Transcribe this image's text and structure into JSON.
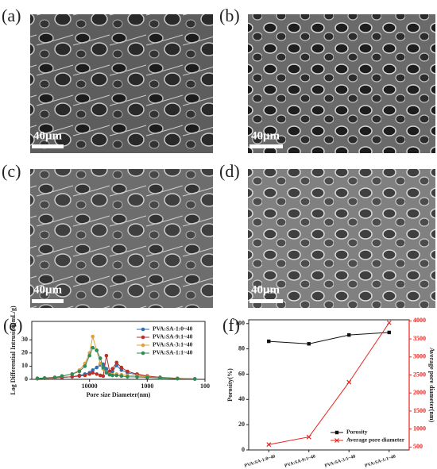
{
  "images": [
    {
      "label": "(a)",
      "scale_bar": "40μm"
    },
    {
      "label": "(b)",
      "scale_bar": "40μm"
    },
    {
      "label": "(c)",
      "scale_bar": "40μm"
    },
    {
      "label": "(d)",
      "scale_bar": "40μm"
    }
  ],
  "chart_data": [
    {
      "type": "line",
      "panel_label": "(e)",
      "x_label": "Pore size Diameter(nm)",
      "y_label": "Log Differential Intrusion(mL/g)",
      "x": [
        80000,
        60000,
        40000,
        30000,
        20000,
        15000,
        12000,
        10000,
        8800,
        7500,
        6500,
        5800,
        5100,
        4500,
        4000,
        3400,
        2800,
        2200,
        1500,
        1000,
        600,
        300,
        150
      ],
      "xlim": [
        100000,
        100
      ],
      "xscale": "log",
      "xticks": [
        10000,
        1000,
        100
      ],
      "ylim": [
        0,
        44
      ],
      "yticks": [
        0,
        10,
        20,
        30
      ],
      "legend": "upper right",
      "series": [
        {
          "name": "PVA:SA-1:0~40",
          "color": "#2f6eb5",
          "values": [
            0.5,
            0.8,
            1,
            1.5,
            2,
            3,
            4,
            5,
            7,
            9,
            11,
            11.5,
            8,
            4,
            6,
            10.5,
            7,
            5,
            3.5,
            2.5,
            1.5,
            0.7,
            0.3
          ]
        },
        {
          "name": "PVA:SA-9:1~40",
          "color": "#b8322a",
          "values": [
            0.5,
            0.8,
            1,
            1.5,
            2,
            2.5,
            3,
            4,
            5,
            4,
            3,
            2.5,
            18,
            6,
            8,
            12.8,
            9,
            6,
            4,
            2.5,
            1.5,
            0.7,
            0.3
          ]
        },
        {
          "name": "PVA:SA-3:1~40",
          "color": "#e3a03a",
          "values": [
            0.8,
            1,
            1.5,
            2.5,
            4,
            7,
            12,
            20,
            32.5,
            22,
            12,
            8,
            5,
            4,
            3.5,
            4,
            3.5,
            3,
            2.5,
            2,
            1.2,
            0.6,
            0.3
          ]
        },
        {
          "name": "PVA:SA-1:1~40",
          "color": "#2e8b57",
          "values": [
            0.8,
            1,
            1.5,
            2.5,
            4,
            6,
            10,
            18,
            24,
            22,
            16,
            9,
            5,
            3.5,
            3,
            3,
            2.5,
            2,
            1.8,
            1.5,
            1,
            0.5,
            0.3
          ]
        }
      ]
    },
    {
      "type": "line",
      "panel_label": "(f)",
      "y_label": "Porosity(%)",
      "y2_label": "Average pore diameter(nm)",
      "categories": [
        "PVA:SA-1:0~40",
        "PVA:SA-9:1~40",
        "PVA:SA-3:1~40",
        "PVA:SA-1:1~40"
      ],
      "ylim": [
        0,
        103
      ],
      "yticks": [
        0,
        20,
        40,
        60,
        80,
        100
      ],
      "y2lim": [
        420,
        4030
      ],
      "y2ticks": [
        500,
        1000,
        1500,
        2000,
        2500,
        3000,
        3500,
        4000
      ],
      "legend": "lower right",
      "series": [
        {
          "name": "Porosity",
          "color": "#111111",
          "marker": "square",
          "values": [
            86,
            84,
            91,
            93
          ]
        },
        {
          "name": "Average pore diameter",
          "color": "#e8231e",
          "marker": "cross",
          "axis": "y2",
          "values": [
            570,
            780,
            2300,
            3950
          ]
        }
      ]
    }
  ]
}
